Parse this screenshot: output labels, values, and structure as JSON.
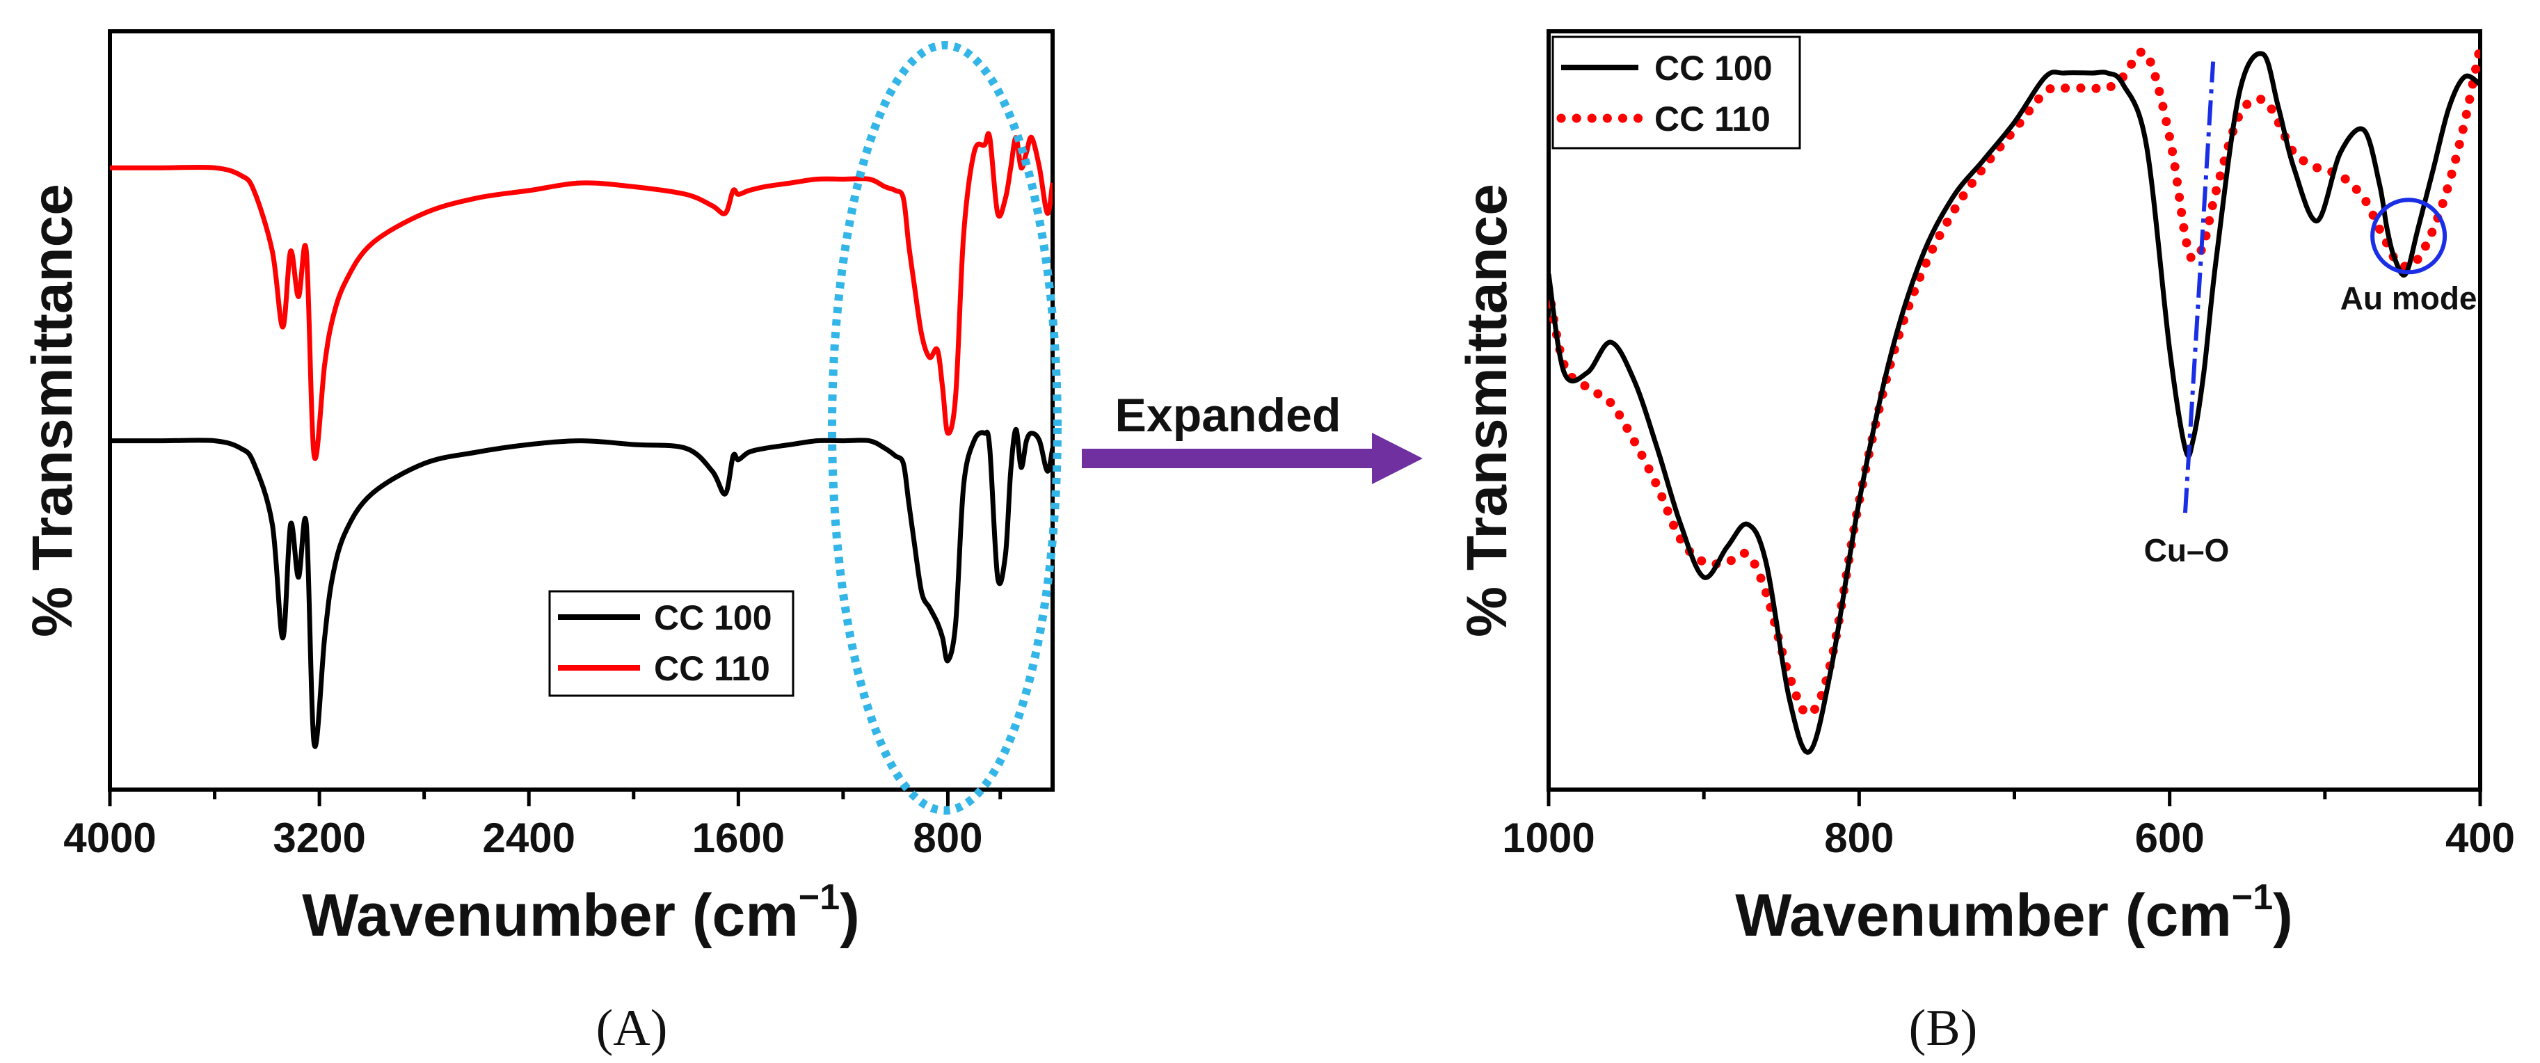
{
  "chart_data": [
    {
      "panel": "A",
      "type": "line",
      "panel_label": "(A)",
      "xlabel": "Wavenumber (cm⁻¹)",
      "xlabel_main": "Wavenumber (cm",
      "xlabel_sup": "−1",
      "xlabel_close": ")",
      "ylabel": "% Transmittance",
      "xlim": [
        4000,
        400
      ],
      "ylim": [
        0,
        100
      ],
      "xticks": [
        4000,
        3200,
        2400,
        1600,
        800
      ],
      "xtick_labels": [
        "4000",
        "3200",
        "2400",
        "1600",
        "800"
      ],
      "yticks_shown": false,
      "legend": [
        {
          "name": "CC 100",
          "color": "#000000",
          "style": "solid"
        },
        {
          "name": "CC 110",
          "color": "#ff0000",
          "style": "solid"
        }
      ],
      "series": [
        {
          "name": "CC 100",
          "x": [
            4000,
            3800,
            3600,
            3500,
            3450,
            3380,
            3340,
            3310,
            3280,
            3250,
            3220,
            3180,
            3150,
            3100,
            3000,
            2800,
            2600,
            2400,
            2200,
            2000,
            1800,
            1700,
            1650,
            1620,
            1600,
            1560,
            1500,
            1400,
            1300,
            1200,
            1100,
            1040,
            1000,
            970,
            950,
            930,
            900,
            870,
            840,
            820,
            800,
            770,
            740,
            700,
            660,
            640,
            610,
            580,
            560,
            540,
            520,
            500,
            480,
            450,
            420,
            400
          ],
          "y": [
            46,
            46,
            46,
            45,
            43,
            35,
            20,
            35,
            28,
            35,
            6,
            20,
            28,
            34,
            39,
            43,
            44.5,
            45.5,
            46,
            45.5,
            45,
            42,
            39,
            44,
            43.5,
            44.5,
            45,
            45.5,
            46,
            46,
            46,
            45,
            44,
            43,
            38,
            33,
            26,
            24,
            22,
            20,
            17,
            22,
            40,
            46,
            47,
            45,
            28,
            31,
            42,
            47.5,
            42.5,
            46,
            47,
            46,
            42,
            45
          ]
        },
        {
          "name": "CC 110",
          "x": [
            4000,
            3800,
            3600,
            3500,
            3450,
            3380,
            3340,
            3310,
            3280,
            3250,
            3220,
            3180,
            3150,
            3100,
            3000,
            2800,
            2600,
            2400,
            2200,
            2000,
            1800,
            1700,
            1650,
            1620,
            1600,
            1560,
            1500,
            1400,
            1300,
            1200,
            1100,
            1040,
            1000,
            970,
            950,
            930,
            900,
            870,
            840,
            820,
            800,
            770,
            740,
            700,
            660,
            640,
            610,
            580,
            560,
            540,
            520,
            500,
            480,
            450,
            420,
            400
          ],
          "y": [
            82,
            82,
            82,
            81,
            79,
            71,
            61,
            71,
            65,
            71,
            44,
            56,
            62,
            67,
            72,
            76,
            78,
            79,
            80,
            79.5,
            78.5,
            77,
            76,
            79,
            78.5,
            79,
            79.5,
            80,
            80.5,
            80.5,
            80.5,
            79.5,
            79,
            78,
            72,
            67,
            60,
            57,
            58,
            53,
            47,
            52,
            73,
            84,
            85,
            86,
            76,
            78,
            82,
            86,
            82,
            84,
            86,
            82,
            76,
            80
          ]
        }
      ],
      "annotations": [
        {
          "type": "ellipse",
          "color": "#33b5e8",
          "style": "dotted",
          "x_center": 800,
          "x_range": [
            1280,
            400
          ],
          "y_range": [
            -3,
            100
          ]
        }
      ]
    },
    {
      "panel": "B",
      "type": "line",
      "panel_label": "(B)",
      "xlabel": "Wavenumber (cm⁻¹)",
      "xlabel_main": "Wavenumber (cm",
      "xlabel_sup": "−1",
      "xlabel_close": ")",
      "ylabel": "% Transmittance",
      "xlim": [
        1000,
        400
      ],
      "ylim": [
        0,
        100
      ],
      "xticks": [
        1000,
        800,
        600,
        400
      ],
      "xtick_labels": [
        "1000",
        "800",
        "600",
        "400"
      ],
      "yticks_shown": false,
      "legend": [
        {
          "name": "CC 100",
          "color": "#000000",
          "style": "solid"
        },
        {
          "name": "CC 110",
          "color": "#ff0000",
          "style": "dotted"
        }
      ],
      "series": [
        {
          "name": "CC 100",
          "x": [
            1000,
            990,
            975,
            960,
            945,
            930,
            915,
            900,
            885,
            872,
            860,
            845,
            832,
            818,
            800,
            780,
            760,
            740,
            720,
            700,
            680,
            668,
            650,
            640,
            630,
            615,
            600,
            590,
            585,
            578,
            570,
            555,
            540,
            530,
            520,
            505,
            490,
            475,
            465,
            460,
            455,
            448,
            440,
            430,
            420,
            410,
            400
          ],
          "y": [
            68,
            55,
            55,
            59,
            54,
            45,
            35,
            28,
            32,
            35,
            30,
            12,
            5,
            16,
            38,
            57,
            70,
            78,
            83,
            88,
            94,
            94.5,
            94.5,
            94.5,
            93,
            85,
            58,
            45,
            46,
            55,
            70,
            92,
            97,
            90,
            82,
            75,
            84,
            87,
            80,
            74,
            70,
            68,
            74,
            82,
            90,
            94,
            93
          ]
        },
        {
          "name": "CC 110",
          "x": [
            1000,
            990,
            975,
            960,
            945,
            930,
            915,
            900,
            885,
            872,
            860,
            845,
            832,
            818,
            800,
            780,
            760,
            740,
            720,
            700,
            680,
            668,
            650,
            640,
            630,
            615,
            600,
            590,
            585,
            578,
            570,
            555,
            540,
            530,
            520,
            505,
            490,
            475,
            465,
            460,
            455,
            448,
            440,
            430,
            420,
            410,
            400
          ],
          "y": [
            66,
            56,
            53,
            51,
            46,
            40,
            33,
            30,
            30,
            31,
            26,
            15,
            10,
            17,
            38,
            56,
            68,
            76,
            82,
            87,
            92,
            92.5,
            92.5,
            92.5,
            94,
            97,
            86,
            73,
            70,
            72,
            79,
            89,
            91,
            88,
            84,
            82,
            81,
            78,
            74,
            72,
            70,
            69,
            70,
            74,
            80,
            88,
            98
          ]
        }
      ],
      "annotations": [
        {
          "type": "line",
          "label": "Cu–O",
          "color": "#1a2ee6",
          "style": "dashdot",
          "from": [
            590,
            42
          ],
          "to": [
            572,
            96
          ]
        },
        {
          "type": "circle",
          "label": "Au mode",
          "color": "#1a2ee6",
          "center": [
            447,
            73
          ]
        }
      ]
    }
  ],
  "arrow": {
    "label": "Expanded",
    "color": "#7030a0"
  }
}
